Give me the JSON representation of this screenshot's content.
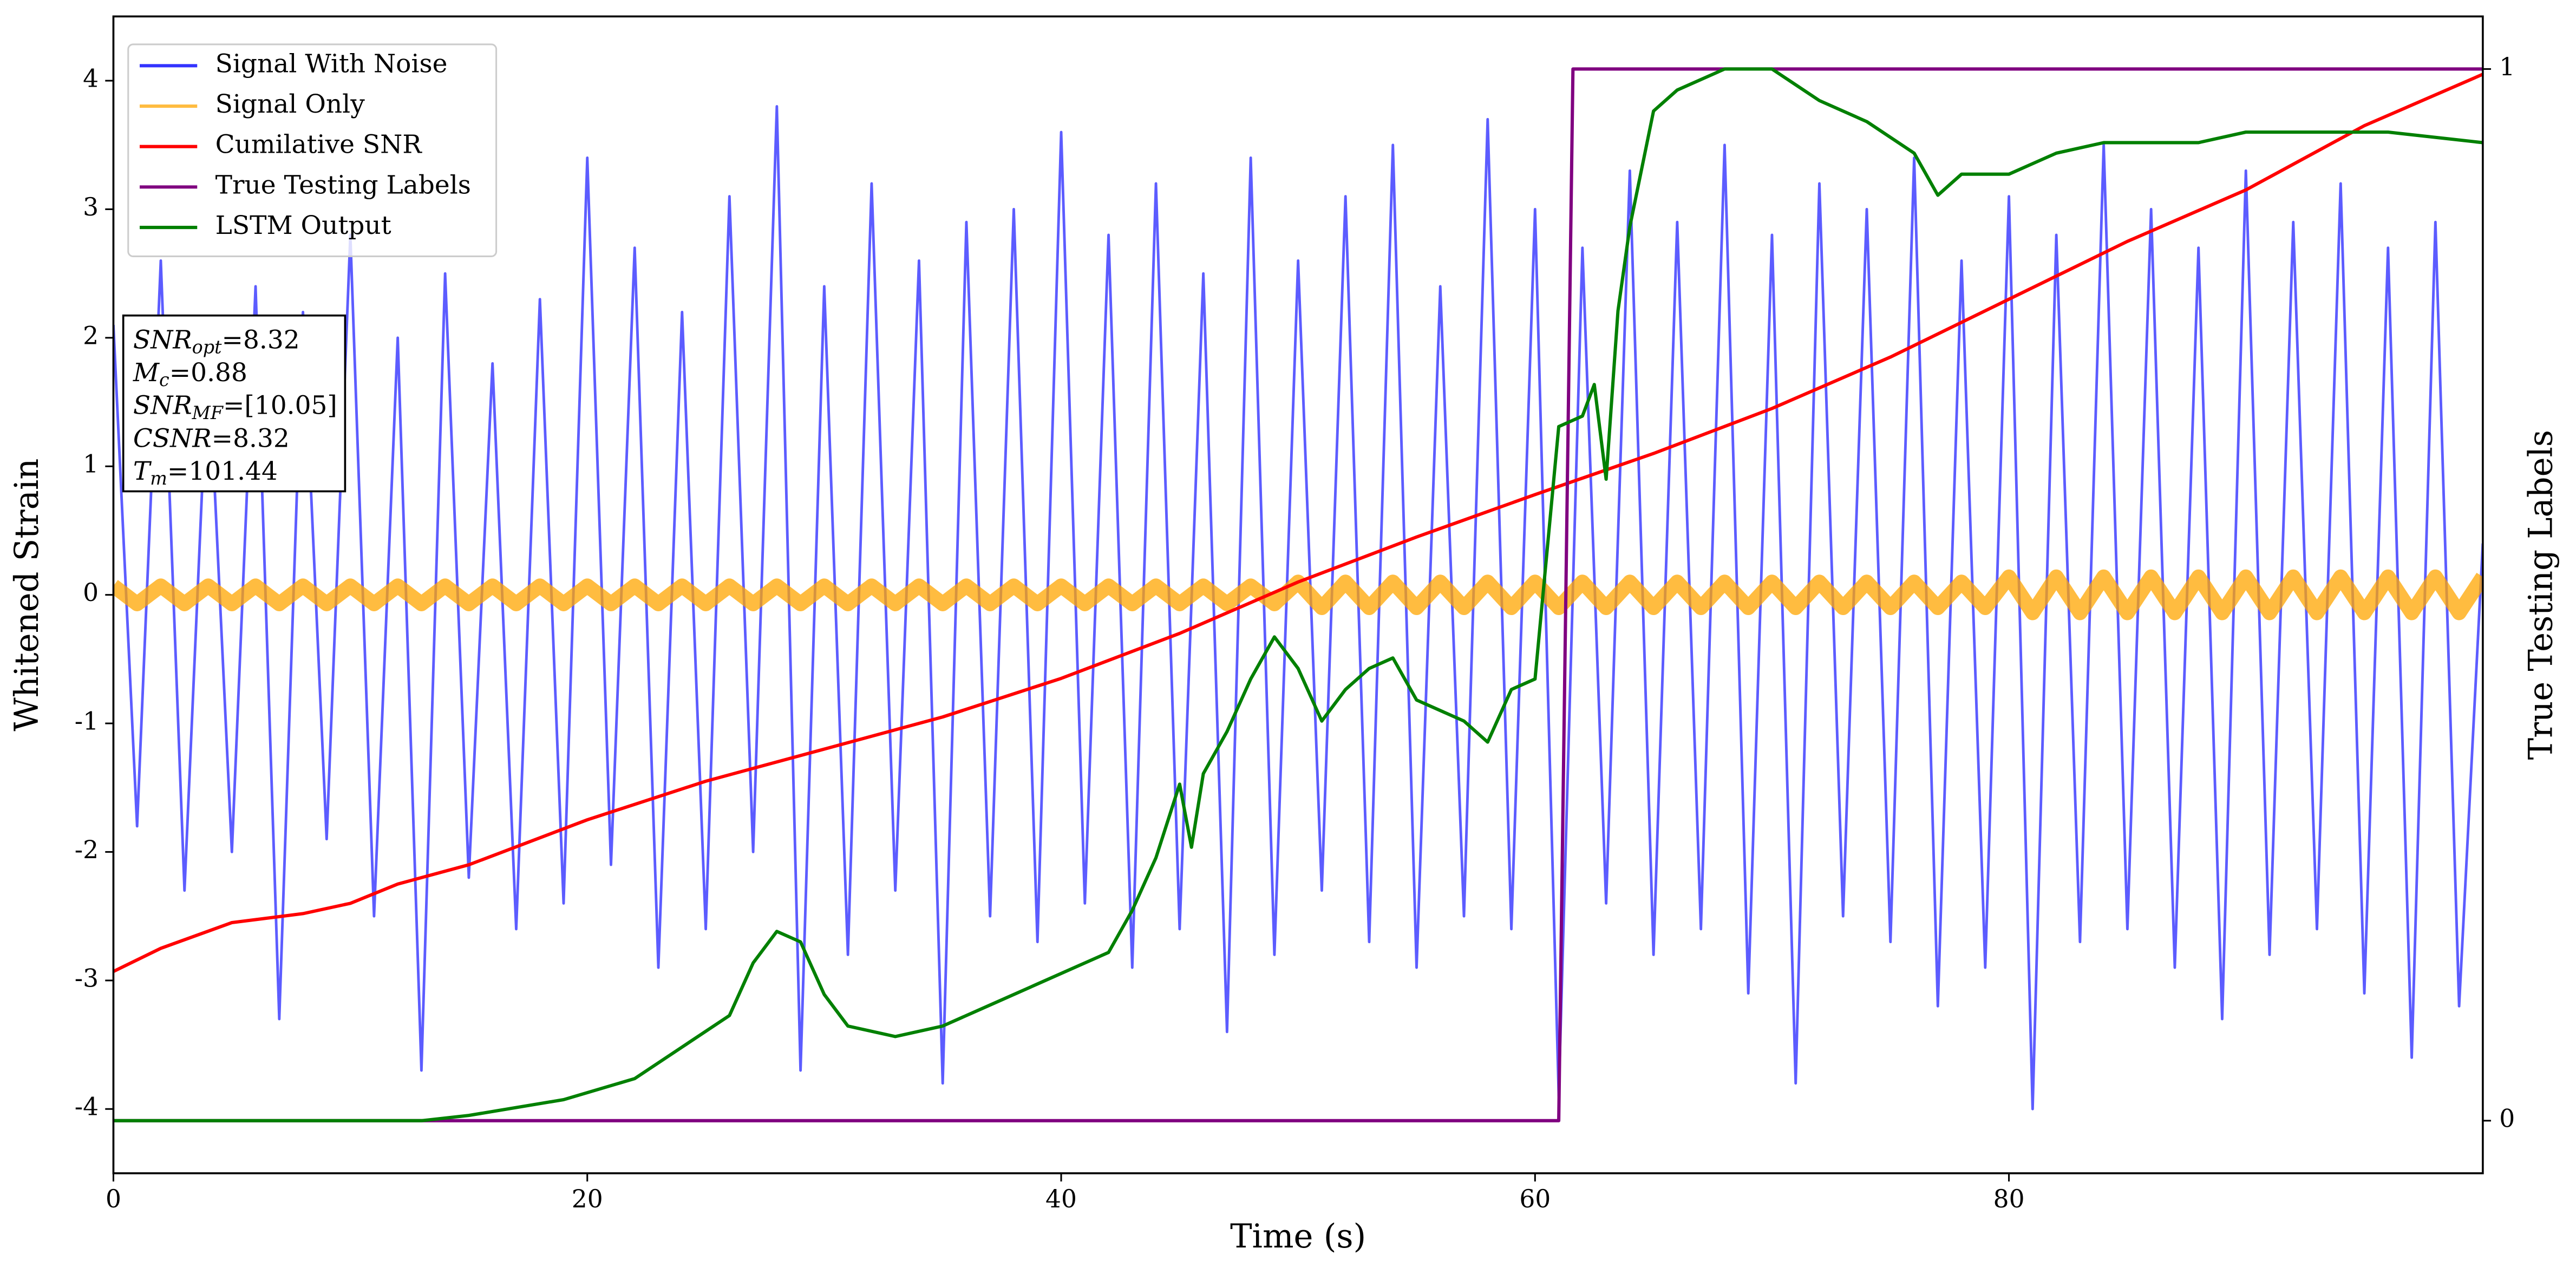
{
  "chart_data": {
    "type": "line",
    "xlabel": "Time (s)",
    "ylabel": "Whitened Strain",
    "y2label": "True Testing Labels",
    "xlim": [
      0,
      100
    ],
    "xticks": [
      0,
      20,
      40,
      60,
      80
    ],
    "ylim": [
      -4.5,
      4.5
    ],
    "yticks": [
      -4,
      -3,
      -2,
      -1,
      0,
      1,
      2,
      3,
      4
    ],
    "y2lim": [
      -0.05,
      1.05
    ],
    "y2ticks": [
      0,
      1
    ],
    "legend": "upper left",
    "grid": false,
    "annotations": [
      {
        "text": "SNR",
        "sub": "opt",
        "rest": "=8.32"
      },
      {
        "text": "M",
        "sub": "c",
        "rest": "=0.88"
      },
      {
        "text": "SNR",
        "sub": "MF",
        "rest": "=[10.05]"
      },
      {
        "text": "CSNR",
        "sub": "",
        "rest": "=8.32"
      },
      {
        "text": "T",
        "sub": "m",
        "rest": "=101.44"
      }
    ],
    "series": [
      {
        "name": "Signal With Noise",
        "color": "#3333ff",
        "width": 1.6,
        "x": [
          0,
          1,
          2,
          3,
          4,
          5,
          6,
          7,
          8,
          9,
          10,
          11,
          12,
          13,
          14,
          15,
          16,
          17,
          18,
          19,
          20,
          21,
          22,
          23,
          24,
          25,
          26,
          27,
          28,
          29,
          30,
          31,
          32,
          33,
          34,
          35,
          36,
          37,
          38,
          39,
          40,
          41,
          42,
          43,
          44,
          45,
          46,
          47,
          48,
          49,
          50,
          51,
          52,
          53,
          54,
          55,
          56,
          57,
          58,
          59,
          60,
          61,
          62,
          63,
          64,
          65,
          66,
          67,
          68,
          69,
          70,
          71,
          72,
          73,
          74,
          75,
          76,
          77,
          78,
          79,
          80,
          81,
          82,
          83,
          84,
          85,
          86,
          87,
          88,
          89,
          90,
          91,
          92,
          93,
          94,
          95,
          96,
          97,
          98,
          99,
          100
        ],
        "values": [
          2.1,
          -1.8,
          2.6,
          -2.3,
          1.9,
          -2.0,
          2.4,
          -3.3,
          2.2,
          -1.9,
          2.8,
          -2.5,
          2.0,
          -3.7,
          2.5,
          -2.2,
          1.8,
          -2.6,
          2.3,
          -2.4,
          3.4,
          -2.1,
          2.7,
          -2.9,
          2.2,
          -2.6,
          3.1,
          -2.0,
          3.8,
          -3.7,
          2.4,
          -2.8,
          3.2,
          -2.3,
          2.6,
          -3.8,
          2.9,
          -2.5,
          3,
          -2.7,
          3.6,
          -2.4,
          2.8,
          -2.9,
          3.2,
          -2.6,
          2.5,
          -3.4,
          3.4,
          -2.8,
          2.6,
          -2.3,
          3.1,
          -2.7,
          3.5,
          -2.9,
          2.4,
          -2.5,
          3.7,
          -2.6,
          3,
          -3.9,
          2.7,
          -2.4,
          3.3,
          -2.8,
          2.9,
          -2.6,
          3.5,
          -3.1,
          2.8,
          -3.8,
          3.2,
          -2.5,
          3,
          -2.7,
          3.4,
          -3.2,
          2.6,
          -2.9,
          3.1,
          -4.0,
          2.8,
          -2.7,
          3.5,
          -2.6,
          3,
          -2.9,
          2.7,
          -3.3,
          3.3,
          -2.8,
          2.9,
          -2.6,
          3.2,
          -3.1,
          2.7,
          -3.6,
          2.9,
          -3.2,
          0.4
        ]
      },
      {
        "name": "Signal Only",
        "color": "#ffa500",
        "width": 9,
        "x": [
          0,
          1,
          2,
          3,
          4,
          5,
          6,
          7,
          8,
          9,
          10,
          11,
          12,
          13,
          14,
          15,
          16,
          17,
          18,
          19,
          20,
          21,
          22,
          23,
          24,
          25,
          26,
          27,
          28,
          29,
          30,
          31,
          32,
          33,
          34,
          35,
          36,
          37,
          38,
          39,
          40,
          41,
          42,
          43,
          44,
          45,
          46,
          47,
          48,
          49,
          50,
          51,
          52,
          53,
          54,
          55,
          56,
          57,
          58,
          59,
          60,
          61,
          62,
          63,
          64,
          65,
          66,
          67,
          68,
          69,
          70,
          71,
          72,
          73,
          74,
          75,
          76,
          77,
          78,
          79,
          80,
          81,
          82,
          83,
          84,
          85,
          86,
          87,
          88,
          89,
          90,
          91,
          92,
          93,
          94,
          95,
          96,
          97,
          98,
          99,
          100
        ],
        "values": [
          0.07,
          -0.07,
          0.07,
          -0.07,
          0.07,
          -0.07,
          0.07,
          -0.07,
          0.07,
          -0.07,
          0.07,
          -0.07,
          0.07,
          -0.07,
          0.07,
          -0.07,
          0.07,
          -0.07,
          0.07,
          -0.07,
          0.07,
          -0.07,
          0.07,
          -0.07,
          0.07,
          -0.07,
          0.07,
          -0.07,
          0.07,
          -0.07,
          0.07,
          -0.07,
          0.07,
          -0.07,
          0.07,
          -0.07,
          0.07,
          -0.07,
          0.07,
          -0.07,
          0.07,
          -0.07,
          0.07,
          -0.07,
          0.07,
          -0.07,
          0.07,
          -0.07,
          0.07,
          -0.07,
          0.1,
          -0.1,
          0.1,
          -0.1,
          0.1,
          -0.1,
          0.1,
          -0.1,
          0.1,
          -0.1,
          0.1,
          -0.1,
          0.1,
          -0.1,
          0.1,
          -0.1,
          0.1,
          -0.1,
          0.1,
          -0.1,
          0.1,
          -0.1,
          0.1,
          -0.1,
          0.1,
          -0.1,
          0.1,
          -0.1,
          0.1,
          -0.1,
          0.14,
          -0.14,
          0.14,
          -0.14,
          0.14,
          -0.14,
          0.14,
          -0.14,
          0.14,
          -0.14,
          0.14,
          -0.14,
          0.14,
          -0.14,
          0.14,
          -0.14,
          0.14,
          -0.14,
          0.14,
          -0.14,
          0.14
        ]
      },
      {
        "name": "Cumilative SNR",
        "color": "#ff0000",
        "width": 2,
        "x": [
          0,
          2,
          5,
          8,
          10,
          12,
          15,
          20,
          25,
          30,
          35,
          40,
          45,
          50,
          55,
          60,
          65,
          70,
          75,
          80,
          85,
          90,
          95,
          100
        ],
        "values": [
          -2.93,
          -2.75,
          -2.55,
          -2.48,
          -2.4,
          -2.25,
          -2.1,
          -1.75,
          -1.45,
          -1.2,
          -0.95,
          -0.65,
          -0.3,
          0.1,
          0.45,
          0.78,
          1.1,
          1.45,
          1.85,
          2.3,
          2.75,
          3.15,
          3.65,
          4.05
        ]
      },
      {
        "name": "True Testing Labels",
        "color": "#800080",
        "width": 2,
        "axis": "y2",
        "x": [
          0,
          61,
          61.6,
          100
        ],
        "values": [
          0,
          0,
          1,
          1
        ]
      },
      {
        "name": "LSTM Output",
        "color": "#008000",
        "width": 2,
        "axis": "y2",
        "x": [
          0,
          13,
          15,
          19,
          22,
          24,
          26,
          27,
          28,
          29,
          30,
          31,
          33,
          35,
          37,
          39,
          41,
          42,
          43,
          44,
          45,
          45.5,
          46,
          47,
          48,
          49,
          50,
          51,
          52,
          53,
          54,
          55,
          56,
          57,
          58,
          59,
          60,
          61,
          62,
          62.5,
          63,
          63.5,
          64,
          65,
          66,
          68,
          70,
          72,
          74,
          76,
          77,
          78,
          80,
          81,
          82,
          84,
          88,
          90,
          94,
          96,
          100
        ],
        "values": [
          0,
          0,
          0.005,
          0.02,
          0.04,
          0.07,
          0.1,
          0.15,
          0.18,
          0.17,
          0.12,
          0.09,
          0.08,
          0.09,
          0.11,
          0.13,
          0.15,
          0.16,
          0.2,
          0.25,
          0.32,
          0.26,
          0.33,
          0.37,
          0.42,
          0.46,
          0.43,
          0.38,
          0.41,
          0.43,
          0.44,
          0.4,
          0.39,
          0.38,
          0.36,
          0.41,
          0.42,
          0.66,
          0.67,
          0.7,
          0.61,
          0.77,
          0.85,
          0.96,
          0.98,
          1,
          1,
          0.97,
          0.95,
          0.92,
          0.88,
          0.9,
          0.9,
          0.91,
          0.92,
          0.93,
          0.93,
          0.94,
          0.94,
          0.94,
          0.93
        ]
      }
    ]
  }
}
